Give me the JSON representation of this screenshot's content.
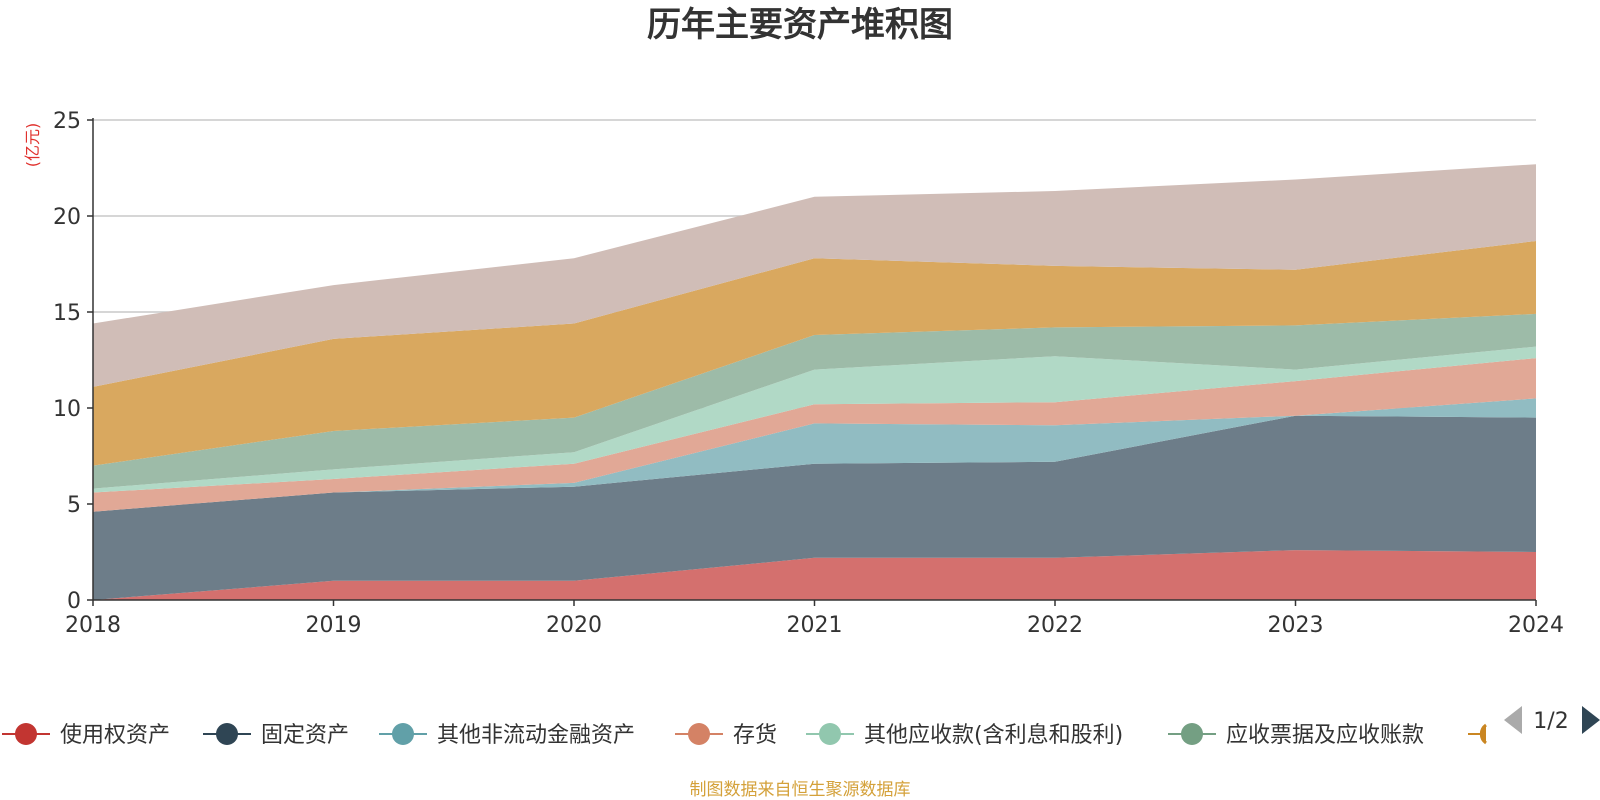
{
  "chart_data": {
    "type": "area",
    "stacked": true,
    "title": "历年主要资产堆积图",
    "ylabel": "(亿元)",
    "xlabel": "",
    "x": [
      "2018",
      "2019",
      "2020",
      "2021",
      "2022",
      "2023",
      "2024"
    ],
    "ylim": [
      0,
      25
    ],
    "yticks": [
      0,
      5,
      10,
      15,
      20,
      25
    ],
    "grid": true,
    "legend_position": "bottom",
    "legend_page": "1/2",
    "series": [
      {
        "name": "使用权资产",
        "color": "#c23531",
        "area_color": "#d4706e",
        "values": [
          0.0,
          1.0,
          1.0,
          2.2,
          2.2,
          2.6,
          2.5
        ]
      },
      {
        "name": "固定资产",
        "color": "#2f4554",
        "area_color": "#6d7d89",
        "values": [
          4.6,
          4.6,
          4.9,
          4.9,
          5.0,
          7.0,
          7.0
        ]
      },
      {
        "name": "其他非流动金融资产",
        "color": "#61a0a8",
        "area_color": "#91bcc2",
        "values": [
          0.0,
          0.0,
          0.2,
          2.1,
          1.9,
          0.0,
          1.0
        ]
      },
      {
        "name": "存货",
        "color": "#d48265",
        "area_color": "#e1a896",
        "values": [
          1.0,
          0.7,
          1.0,
          1.0,
          1.2,
          1.8,
          2.1
        ]
      },
      {
        "name": "其他应收款(含利息和股利)",
        "color": "#91c7ae",
        "area_color": "#b1d9c6",
        "values": [
          0.2,
          0.5,
          0.6,
          1.8,
          2.4,
          0.6,
          0.6
        ]
      },
      {
        "name": "应收票据及应收账款",
        "color": "#749f83",
        "area_color": "#9dbba8",
        "values": [
          1.2,
          2.0,
          1.8,
          1.8,
          1.5,
          2.3,
          1.7
        ]
      },
      {
        "name": "",
        "color": "#ca8622",
        "area_color": "#d9a85f",
        "values": [
          4.1,
          4.8,
          4.9,
          4.0,
          3.2,
          2.9,
          3.8
        ]
      },
      {
        "name": "",
        "color": "#bda29a",
        "area_color": "#d0bdb7",
        "values": [
          3.3,
          2.8,
          3.4,
          3.2,
          3.9,
          4.7,
          4.0
        ]
      }
    ]
  },
  "footer": {
    "source": "制图数据来自恒生聚源数据库"
  }
}
